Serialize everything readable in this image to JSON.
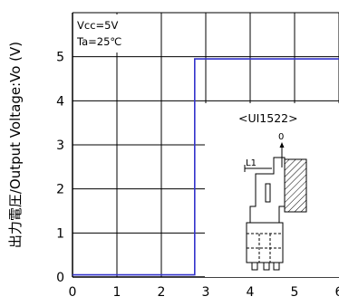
{
  "chart_data": {
    "type": "line",
    "ylabel": "出力電圧/Output Voltage:Vo (V)",
    "xlabel": "",
    "xlim": [
      0,
      6
    ],
    "ylim": [
      0,
      6
    ],
    "x_ticks": [
      "0",
      "1",
      "2",
      "3",
      "4",
      "5",
      "6"
    ],
    "y_ticks": [
      "0",
      "1",
      "2",
      "3",
      "4",
      "5"
    ],
    "grid": true,
    "conditions": [
      "Vcc=5V",
      "Ta=25℃"
    ],
    "series": [
      {
        "color": "#3333cc",
        "points": [
          [
            0,
            0.05
          ],
          [
            2.75,
            0.05
          ],
          [
            2.75,
            4.95
          ],
          [
            6,
            4.95
          ]
        ]
      }
    ],
    "inset": {
      "model": "<UI1522>",
      "arrow_label": "0",
      "dimension_label": "L1"
    }
  }
}
